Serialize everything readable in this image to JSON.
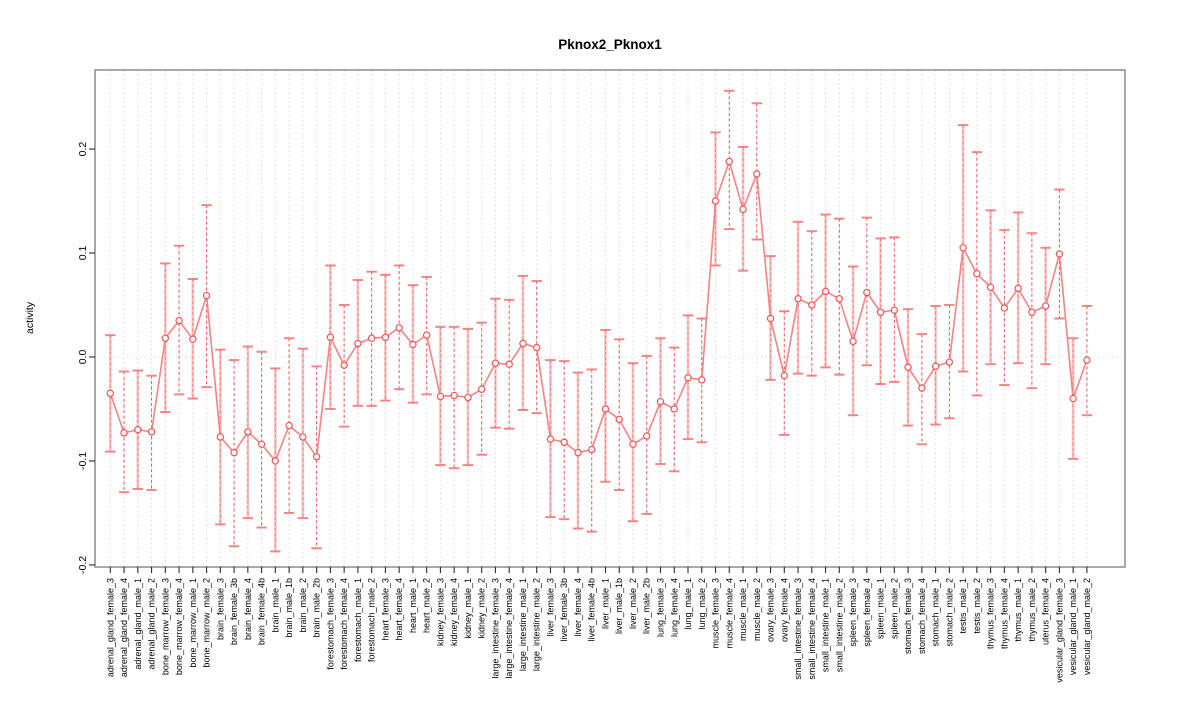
{
  "chart_data": {
    "type": "scatter",
    "subtype": "points-with-error-bars-connected-line",
    "title": "Pknox2_Pknox1",
    "xlabel": "",
    "ylabel": "activity",
    "ylim": [
      -0.202,
      0.276
    ],
    "yticks": [
      -0.2,
      -0.1,
      0.0,
      0.1,
      0.2
    ],
    "ytick_labels": [
      "-0.2",
      "-0.1",
      "0.0",
      "0.1",
      "0.2"
    ],
    "grid": "vertical-dotted-per-category-plus-dotted-zero-line",
    "legend": "none",
    "categories": [
      "adrenal_gland_female_3",
      "adrenal_gland_female_4",
      "adrenal_gland_male_1",
      "adrenal_gland_male_2",
      "bone_marrow_female_3",
      "bone_marrow_female_4",
      "bone_marrow_male_1",
      "bone_marrow_male_2",
      "brain_female_3",
      "brain_female_3b",
      "brain_female_4",
      "brain_female_4b",
      "brain_male_1",
      "brain_male_1b",
      "brain_male_2",
      "brain_male_2b",
      "forestomach_female_3",
      "forestomach_female_4",
      "forestomach_male_1",
      "forestomach_male_2",
      "heart_female_3",
      "heart_female_4",
      "heart_male_1",
      "heart_male_2",
      "kidney_female_3",
      "kidney_female_4",
      "kidney_male_1",
      "kidney_male_2",
      "large_intestine_female_3",
      "large_intestine_female_4",
      "large_intestine_male_1",
      "large_intestine_male_2",
      "liver_female_3",
      "liver_female_3b",
      "liver_female_4",
      "liver_female_4b",
      "liver_male_1",
      "liver_male_1b",
      "liver_male_2",
      "liver_male_2b",
      "lung_female_3",
      "lung_female_4",
      "lung_male_1",
      "lung_male_2",
      "muscle_female_3",
      "muscle_female_4",
      "muscle_male_1",
      "muscle_male_2",
      "ovary_female_3",
      "ovary_female_4",
      "small_intestine_female_3",
      "small_intestine_female_4",
      "small_intestine_male_1",
      "small_intestine_male_2",
      "spleen_female_3",
      "spleen_female_4",
      "spleen_male_1",
      "spleen_male_2",
      "stomach_female_3",
      "stomach_female_4",
      "stomach_male_1",
      "stomach_male_2",
      "testis_male_1",
      "testis_male_2",
      "thymus_female_3",
      "thymus_female_4",
      "thymus_male_1",
      "thymus_male_2",
      "uterus_female_4",
      "vesicular_gland_female_3",
      "vesicular_gland_male_1",
      "vesicular_gland_male_2"
    ],
    "series": [
      {
        "name": "activity",
        "values": [
          -0.035,
          -0.073,
          -0.07,
          -0.072,
          0.018,
          0.035,
          0.017,
          0.059,
          -0.077,
          -0.092,
          -0.072,
          -0.084,
          -0.1,
          -0.066,
          -0.077,
          -0.096,
          0.019,
          -0.008,
          0.013,
          0.018,
          0.019,
          0.028,
          0.012,
          0.021,
          -0.038,
          -0.037,
          -0.039,
          -0.031,
          -0.006,
          -0.007,
          0.013,
          0.009,
          -0.079,
          -0.082,
          -0.092,
          -0.089,
          -0.05,
          -0.06,
          -0.084,
          -0.076,
          -0.043,
          -0.05,
          -0.02,
          -0.022,
          0.15,
          0.188,
          0.142,
          0.176,
          0.037,
          -0.018,
          0.056,
          0.05,
          0.063,
          0.056,
          0.015,
          0.062,
          0.043,
          0.045,
          -0.01,
          -0.03,
          -0.009,
          -0.005,
          0.105,
          0.08,
          0.067,
          0.047,
          0.066,
          0.043,
          0.049,
          0.099,
          -0.04,
          -0.003
        ],
        "lower": [
          -0.091,
          -0.13,
          -0.127,
          -0.128,
          -0.053,
          -0.036,
          -0.04,
          -0.029,
          -0.161,
          -0.182,
          -0.155,
          -0.164,
          -0.187,
          -0.15,
          -0.155,
          -0.184,
          -0.05,
          -0.067,
          -0.047,
          -0.047,
          -0.042,
          -0.031,
          -0.044,
          -0.036,
          -0.104,
          -0.107,
          -0.104,
          -0.094,
          -0.068,
          -0.069,
          -0.051,
          -0.054,
          -0.154,
          -0.156,
          -0.165,
          -0.168,
          -0.12,
          -0.128,
          -0.158,
          -0.151,
          -0.103,
          -0.11,
          -0.079,
          -0.082,
          0.088,
          0.123,
          0.083,
          0.113,
          -0.022,
          -0.075,
          -0.016,
          -0.018,
          -0.01,
          -0.017,
          -0.056,
          -0.008,
          -0.026,
          -0.024,
          -0.066,
          -0.084,
          -0.065,
          -0.059,
          -0.014,
          -0.037,
          -0.007,
          -0.027,
          -0.006,
          -0.03,
          -0.007,
          0.037,
          -0.098,
          -0.056
        ],
        "upper": [
          0.021,
          -0.014,
          -0.013,
          -0.018,
          0.09,
          0.107,
          0.075,
          0.146,
          0.007,
          -0.003,
          0.01,
          0.005,
          -0.011,
          0.018,
          0.008,
          -0.009,
          0.088,
          0.05,
          0.074,
          0.082,
          0.079,
          0.088,
          0.069,
          0.077,
          0.029,
          0.029,
          0.027,
          0.033,
          0.056,
          0.055,
          0.078,
          0.073,
          -0.003,
          -0.004,
          -0.015,
          -0.012,
          0.026,
          0.017,
          -0.006,
          0.001,
          0.018,
          0.009,
          0.04,
          0.037,
          0.216,
          0.256,
          0.202,
          0.244,
          0.097,
          0.044,
          0.13,
          0.121,
          0.137,
          0.133,
          0.087,
          0.134,
          0.114,
          0.115,
          0.046,
          0.022,
          0.049,
          0.05,
          0.223,
          0.197,
          0.141,
          0.122,
          0.139,
          0.119,
          0.105,
          0.161,
          0.018,
          0.049
        ]
      }
    ],
    "colors": {
      "point_stroke": "#F15454",
      "line": "#F47C7C",
      "errorbar_dashed": "#F15454",
      "errorbar_light": "#F6A0A0",
      "errorbar_cap": "#F17A7A",
      "grid": "#D9D9D9",
      "box": "#707070",
      "tick": "#2A2A2A",
      "text": "#000000"
    }
  }
}
